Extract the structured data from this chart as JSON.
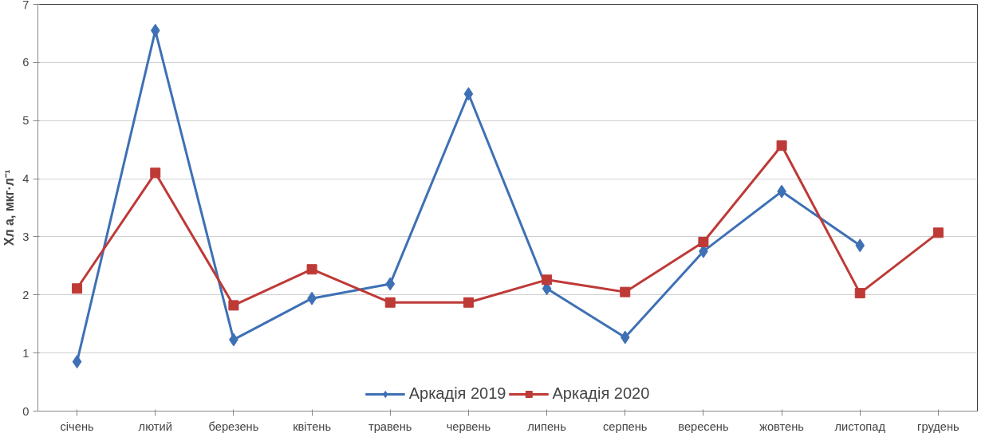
{
  "chart_data": {
    "type": "line",
    "ylabel": "Хл а, мкг·л⁻¹",
    "categories": [
      "січень",
      "лютий",
      "березень",
      "квітень",
      "травень",
      "червень",
      "липень",
      "серпень",
      "вересень",
      "жовтень",
      "листопад",
      "грудень"
    ],
    "series": [
      {
        "name": "Аркадія 2019",
        "color": "#3e70b5",
        "marker": "diamond",
        "values": [
          0.85,
          6.55,
          1.23,
          1.94,
          2.19,
          5.46,
          2.11,
          1.27,
          2.75,
          3.78,
          2.85,
          null
        ]
      },
      {
        "name": "Аркадія 2020",
        "color": "#be3a37",
        "marker": "square",
        "values": [
          2.11,
          4.1,
          1.82,
          2.44,
          1.87,
          1.87,
          2.26,
          2.05,
          2.91,
          4.57,
          2.03,
          3.07
        ]
      }
    ],
    "ylim": [
      0,
      7
    ],
    "yticks": [
      0,
      1,
      2,
      3,
      4,
      5,
      6,
      7
    ],
    "grid": "y",
    "legend": "bottom",
    "line_style": "solid"
  }
}
